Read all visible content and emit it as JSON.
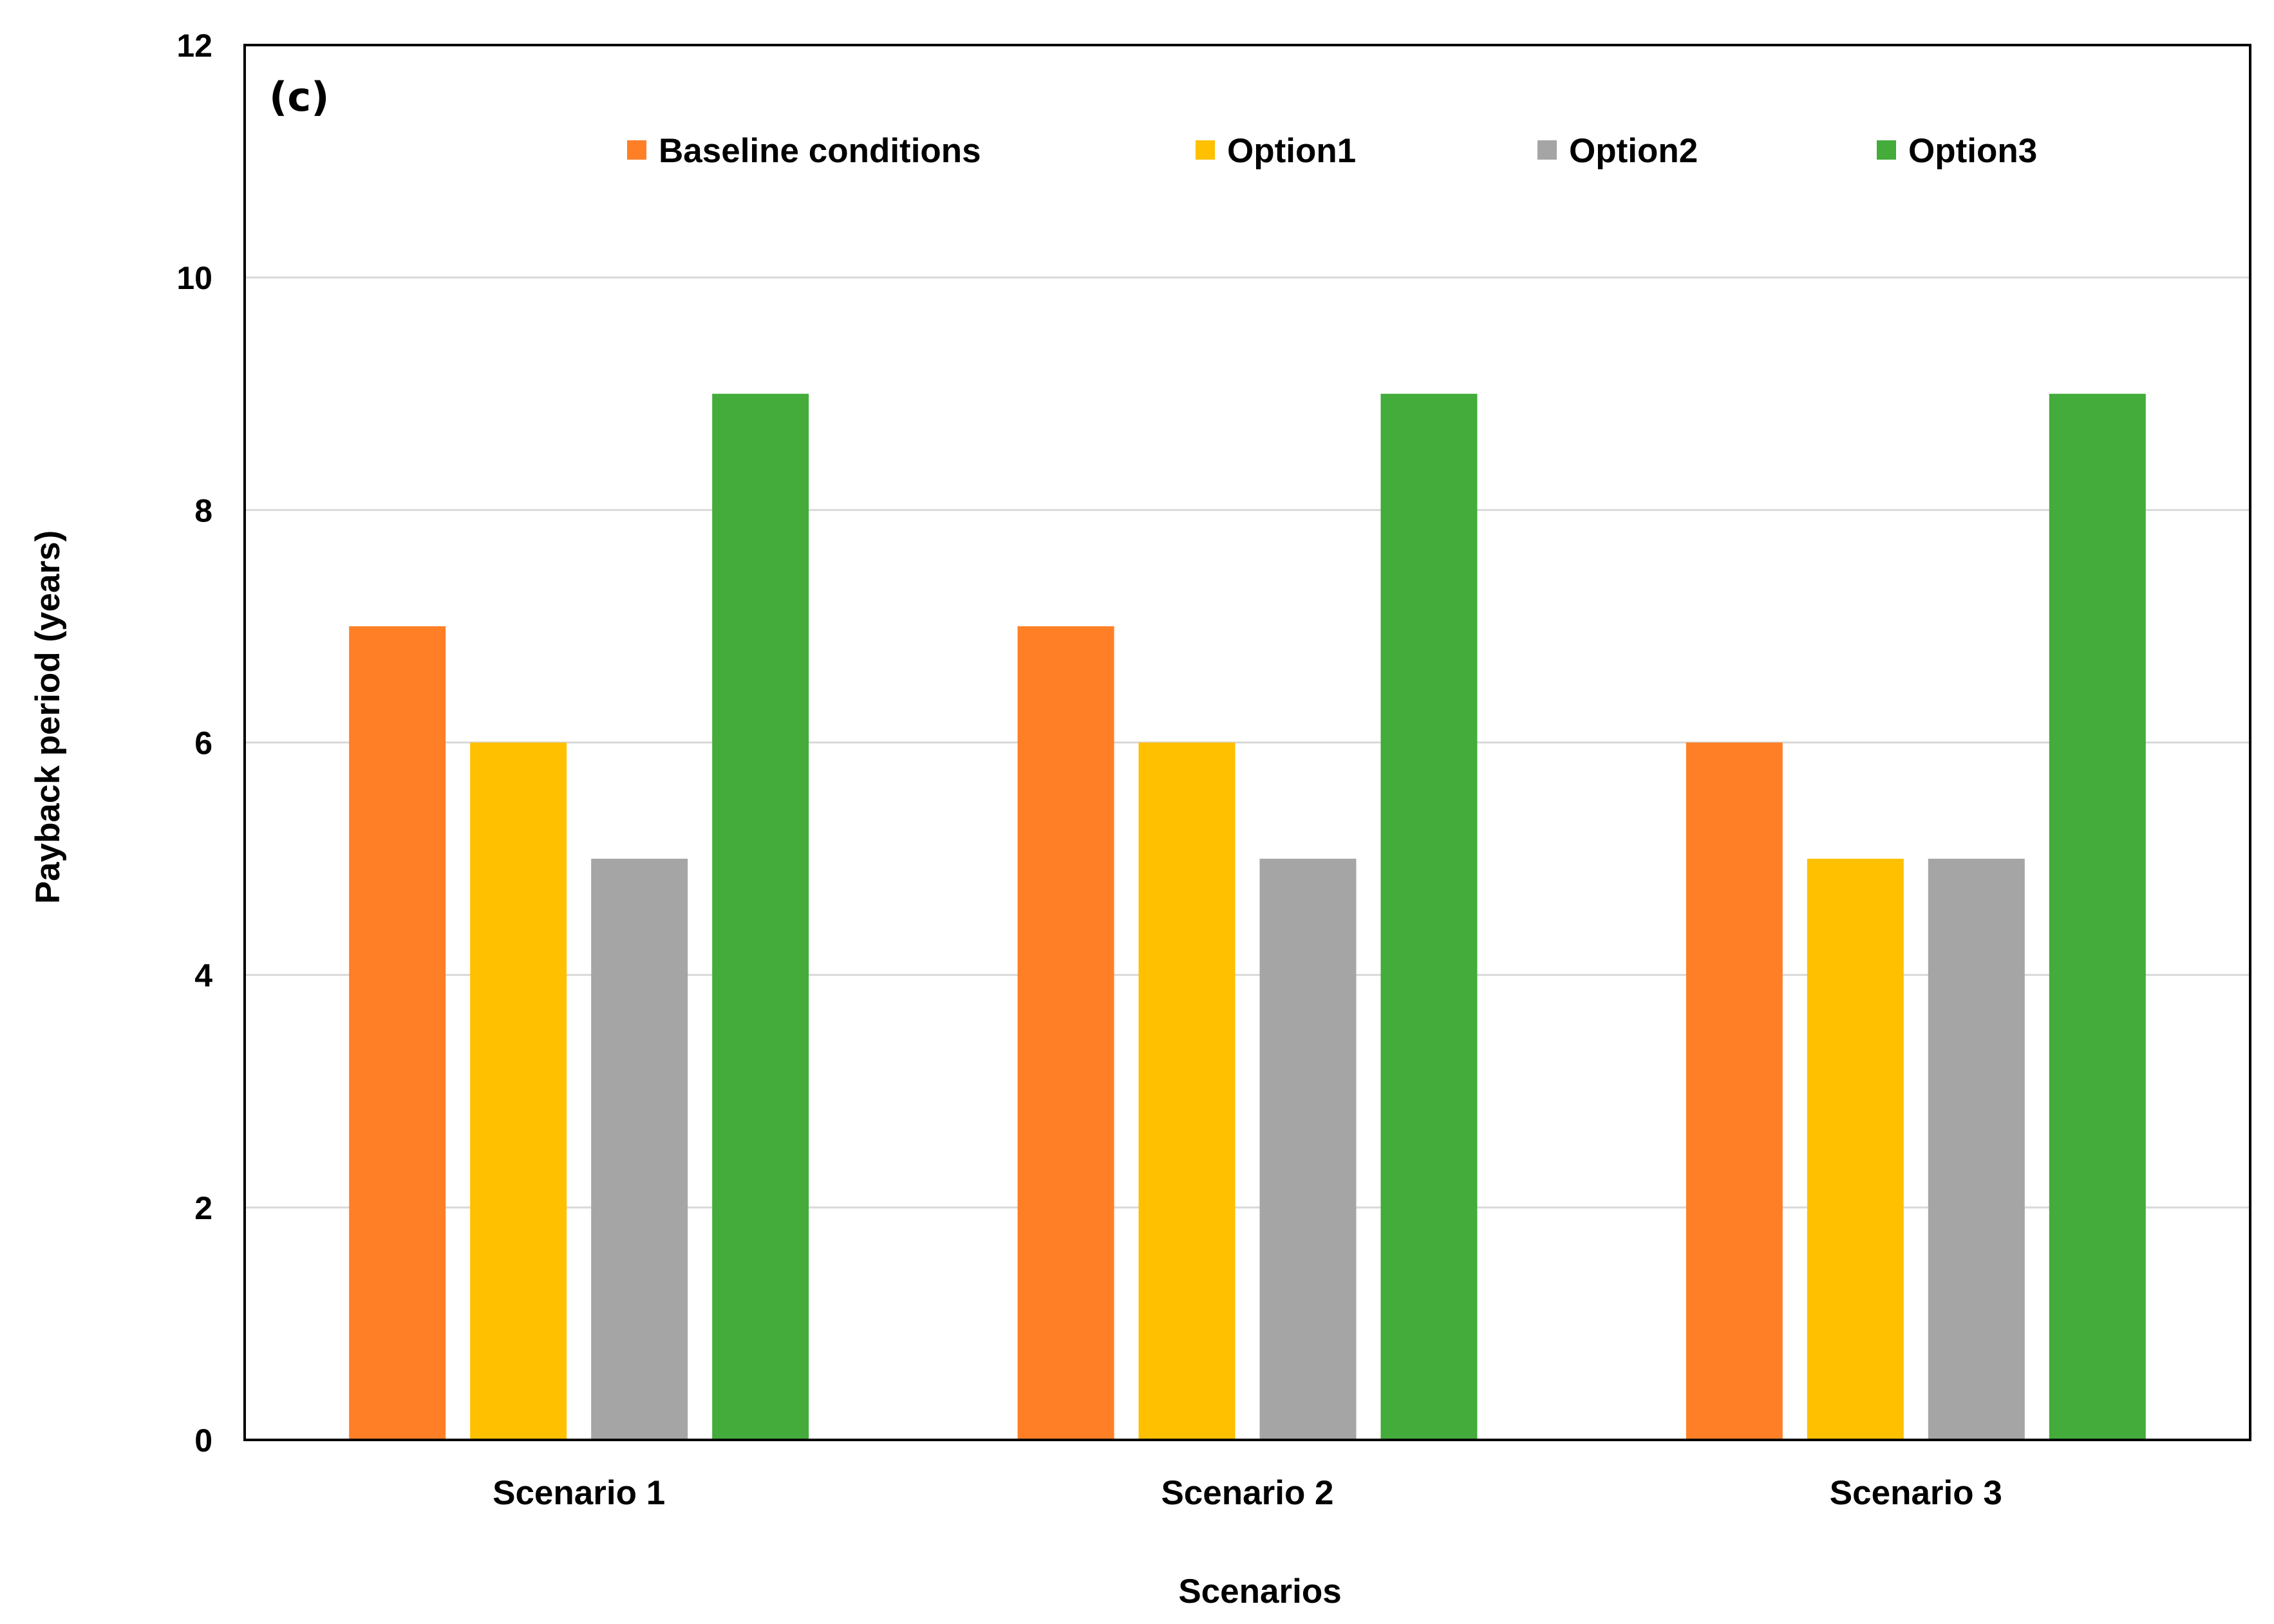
{
  "chart_data": {
    "type": "bar",
    "panel_label": "(c)",
    "title": "",
    "xlabel": "Scenarios",
    "ylabel": "Payback period (years)",
    "categories": [
      "Scenario 1",
      "Scenario 2",
      "Scenario 3"
    ],
    "ylim": [
      0,
      12
    ],
    "yticks": [
      0,
      2,
      4,
      6,
      8,
      10,
      12
    ],
    "grid": true,
    "legend_position": "top",
    "series": [
      {
        "name": "Baseline conditions",
        "color": "#FF7F27",
        "values": [
          7,
          7,
          6
        ]
      },
      {
        "name": "Option1",
        "color": "#FFC000",
        "values": [
          6,
          6,
          5
        ]
      },
      {
        "name": "Option2",
        "color": "#A5A5A5",
        "values": [
          5,
          5,
          5
        ]
      },
      {
        "name": "Option3",
        "color": "#43AC3B",
        "values": [
          9,
          9,
          9
        ]
      }
    ]
  }
}
